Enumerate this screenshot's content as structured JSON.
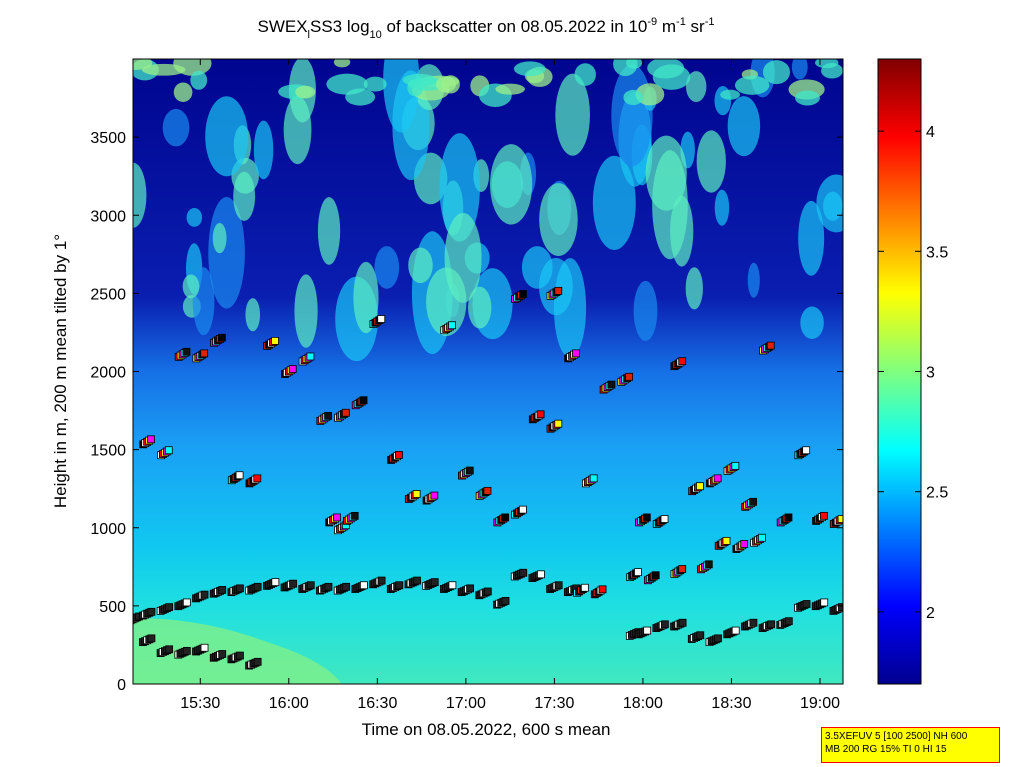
{
  "chart_data": {
    "type": "heatmap",
    "title": {
      "prefix": "SWEX",
      "sub1": "l",
      "mid": "SS3 log",
      "sub2": "10",
      "rest": " of backscatter on 08.05.2022 in 10",
      "sup1": "-9",
      "unit1": " m",
      "sup2": "-1",
      "unit2": " sr",
      "sup3": "-1"
    },
    "xlabel": "Time on 08.05.2022, 600 s mean",
    "ylabel": "Height in m, 200 m mean tilted by 1°",
    "x_ticks": [
      {
        "t": 15.5,
        "label": "15:30"
      },
      {
        "t": 16.0,
        "label": "16:00"
      },
      {
        "t": 16.5,
        "label": "16:30"
      },
      {
        "t": 17.0,
        "label": "17:00"
      },
      {
        "t": 17.5,
        "label": "17:30"
      },
      {
        "t": 18.0,
        "label": "18:00"
      },
      {
        "t": 18.5,
        "label": "18:30"
      },
      {
        "t": 19.0,
        "label": "19:00"
      }
    ],
    "y_ticks": [
      {
        "v": 0,
        "label": "0"
      },
      {
        "v": 500,
        "label": "500"
      },
      {
        "v": 1000,
        "label": "1000"
      },
      {
        "v": 1500,
        "label": "1500"
      },
      {
        "v": 2000,
        "label": "2000"
      },
      {
        "v": 2500,
        "label": "2500"
      },
      {
        "v": 3000,
        "label": "3000"
      },
      {
        "v": 3500,
        "label": "3500"
      }
    ],
    "xlim_hours": [
      15.12,
      19.13
    ],
    "ylim": [
      0,
      4000
    ],
    "colorbar": {
      "range": [
        1.7,
        4.3
      ],
      "colormap": "jet",
      "ticks": [
        {
          "v": 2,
          "label": "2"
        },
        {
          "v": 2.5,
          "label": "2.5"
        },
        {
          "v": 3,
          "label": "3"
        },
        {
          "v": 3.5,
          "label": "3.5"
        },
        {
          "v": 4,
          "label": "4"
        }
      ]
    },
    "boundary_layer_markers": [
      [
        15.13,
        420
      ],
      [
        15.2,
        450
      ],
      [
        15.3,
        480
      ],
      [
        15.4,
        510
      ],
      [
        15.5,
        560
      ],
      [
        15.6,
        590
      ],
      [
        15.7,
        600
      ],
      [
        15.8,
        610
      ],
      [
        15.9,
        640
      ],
      [
        16.0,
        630
      ],
      [
        16.1,
        620
      ],
      [
        16.2,
        610
      ],
      [
        16.3,
        610
      ],
      [
        16.4,
        620
      ],
      [
        16.5,
        650
      ],
      [
        16.6,
        620
      ],
      [
        16.7,
        650
      ],
      [
        16.8,
        640
      ],
      [
        16.9,
        620
      ],
      [
        17.0,
        600
      ],
      [
        17.1,
        580
      ],
      [
        17.2,
        520
      ],
      [
        17.3,
        700
      ],
      [
        17.4,
        690
      ],
      [
        17.5,
        620
      ],
      [
        17.6,
        600
      ]
    ],
    "lower_markers": [
      [
        15.2,
        280
      ],
      [
        15.3,
        210
      ],
      [
        15.4,
        200
      ],
      [
        15.5,
        220
      ],
      [
        15.6,
        180
      ],
      [
        15.7,
        170
      ],
      [
        15.8,
        130
      ],
      [
        17.95,
        320
      ],
      [
        18.0,
        330
      ],
      [
        18.1,
        370
      ],
      [
        18.2,
        380
      ],
      [
        18.3,
        300
      ],
      [
        18.4,
        280
      ],
      [
        18.5,
        330
      ],
      [
        18.6,
        380
      ],
      [
        18.7,
        370
      ],
      [
        18.8,
        390
      ],
      [
        18.9,
        500
      ],
      [
        19.0,
        510
      ],
      [
        19.1,
        480
      ]
    ],
    "aerosol_layer_markers": [
      [
        15.2,
        1550
      ],
      [
        15.3,
        1480
      ],
      [
        15.4,
        2110
      ],
      [
        15.5,
        2100
      ],
      [
        15.6,
        2200
      ],
      [
        15.7,
        1320
      ],
      [
        15.8,
        1300
      ],
      [
        15.9,
        2180
      ],
      [
        16.0,
        2000
      ],
      [
        16.1,
        2080
      ],
      [
        16.2,
        1700
      ],
      [
        16.3,
        1720
      ],
      [
        16.4,
        1800
      ],
      [
        16.5,
        2320
      ],
      [
        16.6,
        1450
      ],
      [
        16.7,
        1200
      ],
      [
        16.8,
        1190
      ],
      [
        16.9,
        2280
      ],
      [
        17.0,
        1350
      ],
      [
        17.1,
        1220
      ],
      [
        17.2,
        1050
      ],
      [
        17.3,
        1100
      ],
      [
        17.4,
        1710
      ],
      [
        17.5,
        1650
      ],
      [
        17.6,
        2100
      ],
      [
        17.7,
        1300
      ],
      [
        17.8,
        1900
      ],
      [
        17.9,
        1950
      ],
      [
        18.0,
        1050
      ],
      [
        18.1,
        1040
      ],
      [
        18.2,
        2050
      ],
      [
        18.3,
        1250
      ],
      [
        18.4,
        1300
      ],
      [
        18.5,
        1380
      ],
      [
        18.6,
        1150
      ],
      [
        18.7,
        2150
      ],
      [
        18.8,
        1050
      ],
      [
        18.9,
        1480
      ],
      [
        19.0,
        1060
      ],
      [
        19.1,
        1040
      ],
      [
        16.25,
        1050
      ],
      [
        16.3,
        1000
      ],
      [
        16.35,
        1060
      ],
      [
        17.5,
        2500
      ],
      [
        17.3,
        2480
      ],
      [
        17.65,
        600
      ],
      [
        17.75,
        590
      ],
      [
        18.45,
        900
      ],
      [
        18.55,
        880
      ],
      [
        18.65,
        920
      ],
      [
        18.35,
        750
      ],
      [
        18.2,
        720
      ],
      [
        18.05,
        680
      ],
      [
        17.95,
        700
      ]
    ]
  },
  "info_box": {
    "line1": "3.5XEFUV 5 [100 2500] NH 600",
    "line2": "MB 200 RG 15% TI 0 HI 15",
    "border_color": "#ff0000",
    "background_color": "#ffff00"
  }
}
